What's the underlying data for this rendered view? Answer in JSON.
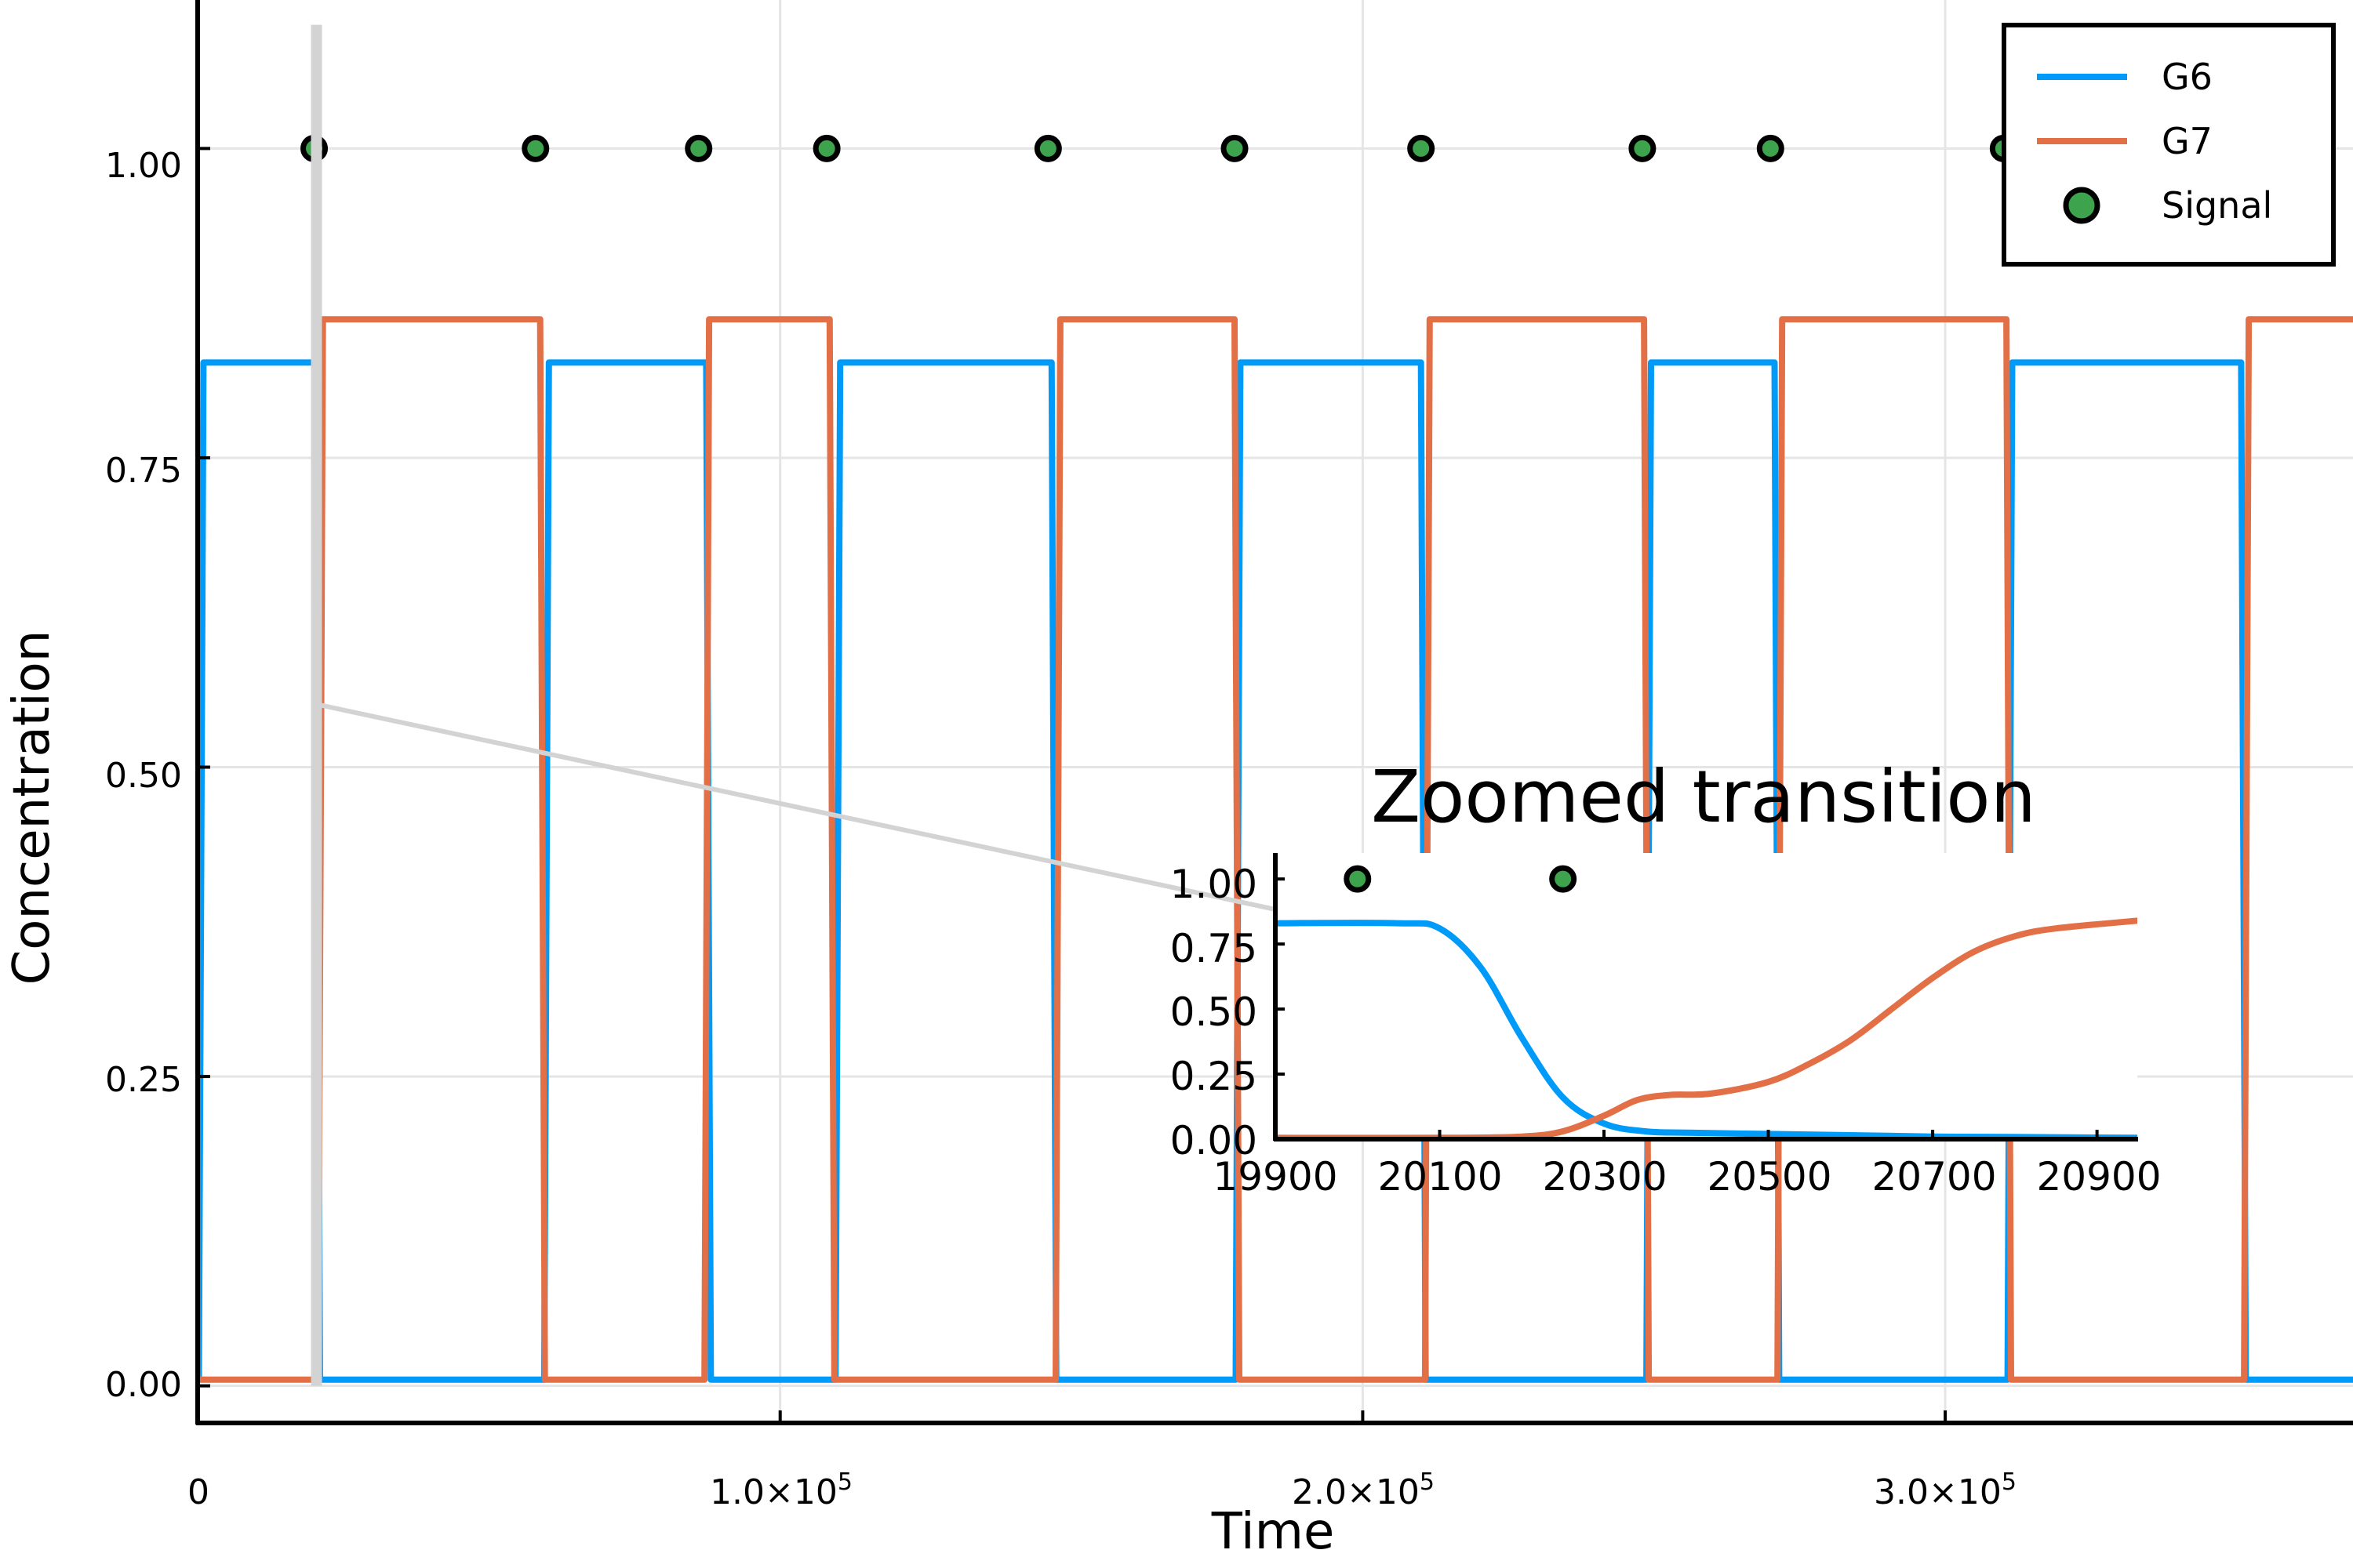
{
  "colors": {
    "g6": "#009af9",
    "g7": "#e26f46",
    "signal_fill": "#3da44d",
    "signal_edge": "#000000",
    "zoom_marker": "#d3d3d3",
    "grid": "#e5e5e5"
  },
  "chart_data": [
    {
      "type": "line",
      "title": "",
      "xlabel": "Time",
      "ylabel": "Concentration",
      "xlim": [
        0,
        370000
      ],
      "ylim": [
        -0.03,
        1.12
      ],
      "grid": true,
      "legend_position": "top-right",
      "x_ticks": [
        {
          "value": 0,
          "label": "0"
        },
        {
          "value": 100000,
          "label": "1.0×10",
          "exp": "5"
        },
        {
          "value": 200000,
          "label": "2.0×10",
          "exp": "5"
        },
        {
          "value": 300000,
          "label": "3.0×10",
          "exp": "5"
        }
      ],
      "y_ticks": [
        {
          "value": 0,
          "label": "0.00"
        },
        {
          "value": 0.25,
          "label": "0.25"
        },
        {
          "value": 0.5,
          "label": "0.50"
        },
        {
          "value": 0.75,
          "label": "0.75"
        },
        {
          "value": 1.0,
          "label": "1.00"
        }
      ],
      "series": [
        {
          "name": "G6",
          "kind": "line",
          "levels": {
            "high": 0.827,
            "low": 0.005
          },
          "step_times": [
            200,
            20200,
            59500,
            87300,
            109500,
            146600,
            178200,
            210000,
            248700,
            270700,
            310700,
            350800
          ],
          "start_level": "low"
        },
        {
          "name": "G7",
          "kind": "line",
          "levels": {
            "high": 0.862,
            "low": 0.005
          },
          "step_times": [
            20700,
            58800,
            87000,
            108500,
            147300,
            178000,
            210700,
            248300,
            271200,
            310500,
            351300
          ],
          "start_level": "low"
        },
        {
          "name": "Signal",
          "kind": "scatter",
          "x": [
            20000,
            58000,
            86000,
            108000,
            146000,
            178000,
            210000,
            248000,
            270000,
            310000
          ],
          "y": [
            1,
            1,
            1,
            1,
            1,
            1,
            1,
            1,
            1,
            1
          ]
        }
      ],
      "zoom_marker": {
        "x": 20400,
        "y_range": [
          0,
          1.1
        ],
        "connector_to": [
          190000,
          0.38
        ]
      }
    },
    {
      "type": "line",
      "title": "Zoomed transition",
      "xlabel": "",
      "ylabel": "",
      "xlim": [
        19900,
        20950
      ],
      "ylim": [
        0,
        1.1
      ],
      "grid": false,
      "x_ticks": [
        {
          "value": 19900,
          "label": "19900"
        },
        {
          "value": 20100,
          "label": "20100"
        },
        {
          "value": 20300,
          "label": "20300"
        },
        {
          "value": 20500,
          "label": "20500"
        },
        {
          "value": 20700,
          "label": "20700"
        },
        {
          "value": 20900,
          "label": "20900"
        }
      ],
      "y_ticks": [
        {
          "value": 0,
          "label": "0.00"
        },
        {
          "value": 0.25,
          "label": "0.25"
        },
        {
          "value": 0.5,
          "label": "0.50"
        },
        {
          "value": 0.75,
          "label": "0.75"
        },
        {
          "value": 1.0,
          "label": "1.00"
        }
      ],
      "series": [
        {
          "name": "G6",
          "kind": "line",
          "x": [
            19900,
            20050,
            20100,
            20150,
            20200,
            20250,
            20300,
            20350,
            20400,
            20500,
            20600,
            20700,
            20800,
            20950
          ],
          "y": [
            0.83,
            0.83,
            0.81,
            0.66,
            0.39,
            0.16,
            0.06,
            0.03,
            0.025,
            0.02,
            0.015,
            0.01,
            0.008,
            0.005
          ]
        },
        {
          "name": "G7",
          "kind": "line",
          "x": [
            19900,
            20100,
            20200,
            20250,
            20300,
            20340,
            20380,
            20430,
            20500,
            20550,
            20600,
            20650,
            20700,
            20750,
            20800,
            20850,
            20950
          ],
          "y": [
            0.005,
            0.005,
            0.01,
            0.03,
            0.09,
            0.15,
            0.17,
            0.175,
            0.22,
            0.29,
            0.38,
            0.5,
            0.62,
            0.72,
            0.78,
            0.81,
            0.84
          ]
        },
        {
          "name": "Signal",
          "kind": "scatter",
          "x": [
            20000,
            20250
          ],
          "y": [
            1,
            1
          ]
        }
      ]
    }
  ]
}
